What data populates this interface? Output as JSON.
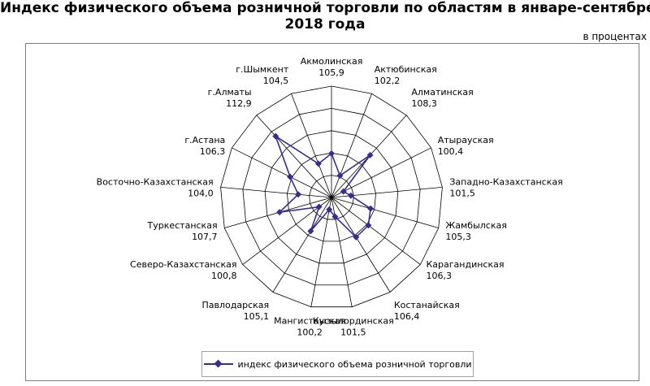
{
  "header": {
    "title_line1": "Индекс физического объема розничной торговли по областям в январе-сентябре",
    "title_line2": "2018 года",
    "units": "в процентах"
  },
  "colors": {
    "series": "#3c2a8e",
    "grid": "#000000"
  },
  "chart_data": {
    "type": "radar",
    "title": "Индекс физического объема розничной торговли по областям в январе-сентябре 2018 года",
    "units": "в процентах",
    "legend_position": "bottom",
    "grid": true,
    "rlim": [
      98,
      118
    ],
    "categories": [
      "Акмолинская",
      "Актюбинская",
      "Алматинская",
      "Атырауская",
      "Западно-Казахстанская",
      "Жамбылская",
      "Карагандинская",
      "Костанайская",
      "Кызылординская",
      "Мангистауская",
      "Павлодарская",
      "Северо-Казахстанская",
      "Туркестанская",
      "Восточно-Казахстанская",
      "г.Астана",
      "г.Алматы",
      "г.Шымкент"
    ],
    "value_labels": [
      "105,9",
      "102,2",
      "108,3",
      "100,4",
      "101,5",
      "105,3",
      "106,3",
      "106,4",
      "101,5",
      "100,2",
      "105,1",
      "100,8",
      "107,7",
      "104,0",
      "106,3",
      "112,9",
      "104,5"
    ],
    "series": [
      {
        "name": "индекс физического объема розничной торговли",
        "values": [
          105.9,
          102.2,
          108.3,
          100.4,
          101.5,
          105.3,
          106.3,
          106.4,
          101.5,
          100.2,
          105.1,
          100.8,
          107.7,
          104.0,
          106.3,
          112.9,
          104.5
        ]
      }
    ]
  }
}
